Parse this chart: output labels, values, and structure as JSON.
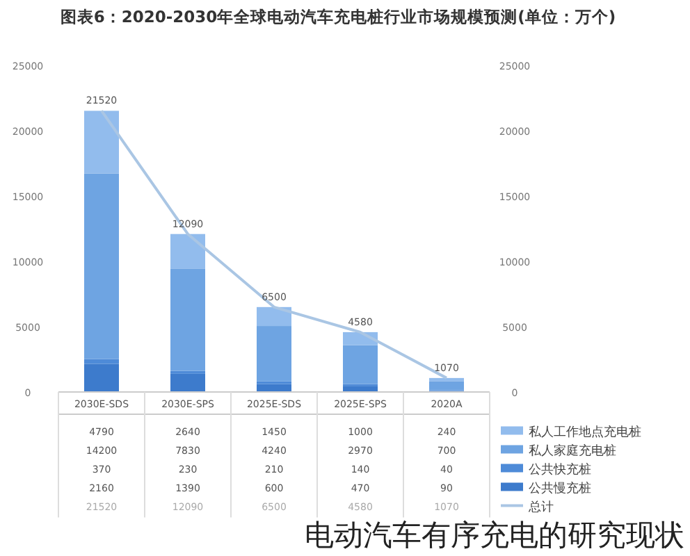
{
  "chart_data": {
    "type": "bar",
    "stacked": true,
    "title": "图表6：2020-2030年全球电动汽车充电桩行业市场规模预测(单位：万个)",
    "categories": [
      "2030E-SDS",
      "2030E-SPS",
      "2025E-SDS",
      "2025E-SPS",
      "2020A"
    ],
    "series": [
      {
        "name": "公共慢充桩",
        "color": "#3d7bcc",
        "values": [
          2160,
          1390,
          600,
          470,
          90
        ]
      },
      {
        "name": "公共快充桩",
        "color": "#4e8bd8",
        "values": [
          370,
          230,
          210,
          140,
          40
        ]
      },
      {
        "name": "私人家庭充电桩",
        "color": "#6ea4e2",
        "values": [
          14200,
          7830,
          4240,
          2970,
          700
        ]
      },
      {
        "name": "私人工作地点充电桩",
        "color": "#92bced",
        "values": [
          4790,
          2640,
          1450,
          1000,
          240
        ]
      },
      {
        "name": "总计",
        "type": "line",
        "color": "#aac6e4",
        "values": [
          21520,
          12090,
          6500,
          4580,
          1070
        ]
      }
    ],
    "ylim": [
      0,
      25000
    ],
    "yticks": [
      0,
      5000,
      10000,
      15000,
      20000,
      25000
    ],
    "y2lim": [
      0,
      25000
    ],
    "y2ticks": [
      0,
      5000,
      10000,
      15000,
      20000,
      25000
    ],
    "data_labels": true,
    "totals": [
      "21520",
      "12090",
      "6500",
      "4580",
      "1070"
    ],
    "legend": "bottom right",
    "grid": false,
    "annotations": [
      "电动汽车有序充电的研究现状"
    ]
  }
}
